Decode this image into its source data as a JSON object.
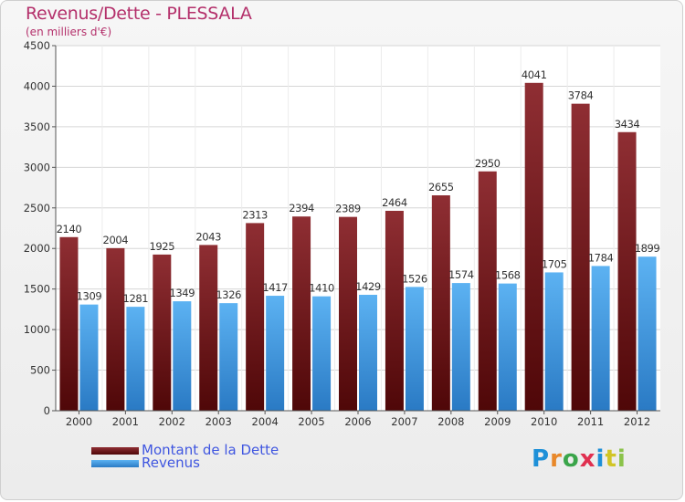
{
  "header": {
    "title": "Revenus/Dette - PLESSALA",
    "subtitle": "(en milliers d'€)"
  },
  "logo": {
    "text": "Proxiti",
    "letter_colors": [
      "#1e90d8",
      "#e8882a",
      "#3aa54a",
      "#e03050",
      "#1e90d8",
      "#d1c526",
      "#8bc34a"
    ]
  },
  "chart_data": {
    "type": "bar",
    "categories": [
      "2000",
      "2001",
      "2002",
      "2003",
      "2004",
      "2005",
      "2006",
      "2007",
      "2008",
      "2009",
      "2010",
      "2011",
      "2012"
    ],
    "series": [
      {
        "name": "Montant de la Dette",
        "color": "#7a1f24",
        "values": [
          2140,
          2004,
          1925,
          2043,
          2313,
          2394,
          2389,
          2464,
          2655,
          2950,
          4041,
          3784,
          3434
        ]
      },
      {
        "name": "Revenus",
        "color": "#4aa3e8",
        "values": [
          1309,
          1281,
          1349,
          1326,
          1417,
          1410,
          1429,
          1526,
          1574,
          1568,
          1705,
          1784,
          1899
        ]
      }
    ],
    "ylim": [
      0,
      4500
    ],
    "yticks": [
      0,
      500,
      1000,
      1500,
      2000,
      2500,
      3000,
      3500,
      4000,
      4500
    ],
    "grid": true,
    "legend_position": "bottom-left"
  }
}
